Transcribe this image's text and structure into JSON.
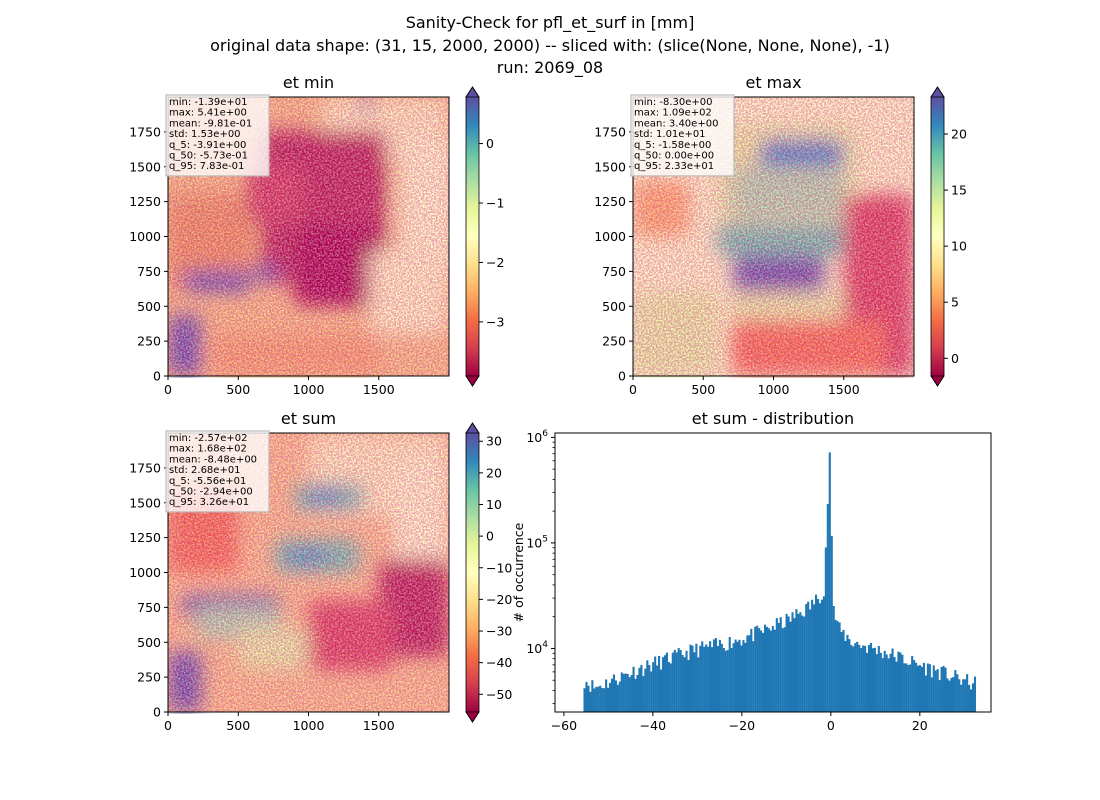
{
  "figure": {
    "title_lines": [
      "Sanity-Check for pfl_et_surf in [mm]",
      "original data shape: (31, 15, 2000, 2000) -- sliced with: (slice(None, None, None), -1)",
      "run: 2069_08"
    ]
  },
  "chart_data": [
    {
      "type": "heatmap",
      "title": "et min",
      "xlim": [
        0,
        2000
      ],
      "ylim": [
        0,
        2000
      ],
      "x_ticks": [
        0,
        500,
        1000,
        1500
      ],
      "y_ticks": [
        0,
        250,
        500,
        750,
        1000,
        1250,
        1500,
        1750
      ],
      "colormap": "Spectral",
      "colorbar": {
        "range": [
          -3.91,
          0.783
        ],
        "ticks": [
          0,
          -1,
          -2,
          -3
        ],
        "tick_labels": [
          "0",
          "−1",
          "−2",
          "−3"
        ],
        "extend": "both"
      },
      "stats": [
        "min: -1.39e+01",
        "max: 5.41e+00",
        "mean: -9.81e-01",
        "std: 1.53e+00",
        "q_5: -3.91e+00",
        "q_50: -5.73e-01",
        "q_95: 7.83e-01"
      ]
    },
    {
      "type": "heatmap",
      "title": "et max",
      "xlim": [
        0,
        2000
      ],
      "ylim": [
        0,
        2000
      ],
      "x_ticks": [
        0,
        500,
        1000,
        1500
      ],
      "y_ticks": [
        0,
        250,
        500,
        750,
        1000,
        1250,
        1500,
        1750
      ],
      "colormap": "Spectral",
      "colorbar": {
        "range": [
          -1.58,
          23.3
        ],
        "ticks": [
          20,
          15,
          10,
          5,
          0
        ],
        "tick_labels": [
          "20",
          "15",
          "10",
          "5",
          "0"
        ],
        "extend": "both"
      },
      "stats": [
        "min: -8.30e+00",
        "max: 1.09e+02",
        "mean: 3.40e+00",
        "std: 1.01e+01",
        "q_5: -1.58e+00",
        "q_50: 0.00e+00",
        "q_95: 2.33e+01"
      ]
    },
    {
      "type": "heatmap",
      "title": "et sum",
      "xlim": [
        0,
        2000
      ],
      "ylim": [
        0,
        2000
      ],
      "x_ticks": [
        0,
        500,
        1000,
        1500
      ],
      "y_ticks": [
        0,
        250,
        500,
        750,
        1000,
        1250,
        1500,
        1750
      ],
      "colormap": "Spectral",
      "colorbar": {
        "range": [
          -55.6,
          32.6
        ],
        "ticks": [
          30,
          20,
          10,
          0,
          -10,
          -20,
          -30,
          -40,
          -50
        ],
        "tick_labels": [
          "30",
          "20",
          "10",
          "0",
          "−10",
          "−20",
          "−30",
          "−40",
          "−50"
        ],
        "extend": "both"
      },
      "stats": [
        "min: -2.57e+02",
        "max: 1.68e+02",
        "mean: -8.48e+00",
        "std: 2.68e+01",
        "q_5: -5.56e+01",
        "q_50: -2.94e+00",
        "q_95: 3.26e+01"
      ]
    },
    {
      "type": "bar",
      "title": "et sum - distribution",
      "ylabel": "# of occurrence",
      "yscale": "log",
      "color": "#1f77b4",
      "xlim": [
        -62,
        36
      ],
      "ylim": [
        2500,
        1100000
      ],
      "x_ticks": [
        -60,
        -40,
        -20,
        0,
        20
      ],
      "x_tick_labels": [
        "−60",
        "−40",
        "−20",
        "0",
        "20"
      ],
      "y_ticks": [
        10000,
        100000,
        1000000
      ],
      "y_tick_labels": [
        "10",
        "10",
        "10"
      ],
      "y_tick_exponents": [
        "4",
        "5",
        "6"
      ],
      "bin_range": [
        -55.6,
        32.6
      ],
      "bin_width": 0.441,
      "counts_at": [
        [
          -55.6,
          5200
        ],
        [
          -53,
          4300
        ],
        [
          -50,
          4900
        ],
        [
          -45,
          6000
        ],
        [
          -40,
          7200
        ],
        [
          -35,
          8500
        ],
        [
          -30,
          10000
        ],
        [
          -25,
          11000
        ],
        [
          -20,
          12500
        ],
        [
          -15,
          15000
        ],
        [
          -10,
          18500
        ],
        [
          -7,
          22000
        ],
        [
          -5,
          25000
        ],
        [
          -3,
          30000
        ],
        [
          -1.5,
          38000
        ],
        [
          -0.2,
          820000
        ],
        [
          0.5,
          24000
        ],
        [
          2,
          15000
        ],
        [
          5,
          11500
        ],
        [
          10,
          10000
        ],
        [
          15,
          8500
        ],
        [
          20,
          7000
        ],
        [
          25,
          6000
        ],
        [
          30,
          5000
        ],
        [
          32.6,
          4700
        ]
      ]
    }
  ]
}
